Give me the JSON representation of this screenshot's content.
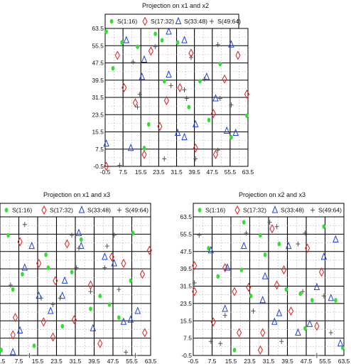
{
  "chart_data": [
    {
      "type": "scatter",
      "title": "Projection on x1 and x2",
      "xticks": [
        "-0.5",
        "7.5",
        "15.5",
        "23.5",
        "31.5",
        "39.5",
        "47.5",
        "55.5",
        "63.5"
      ],
      "yticks": [
        "-0.5",
        "7.5",
        "15.5",
        "23.5",
        "31.5",
        "39.5",
        "47.5",
        "55.5",
        "63.5"
      ],
      "xlim": [
        -0.5,
        63.5
      ],
      "ylim": [
        -0.5,
        63.5
      ],
      "grid": true,
      "legend_position": "top",
      "series": [
        {
          "name": "S(1:16)",
          "marker": "ellipse",
          "color": "#33dd33",
          "points": [
            [
              0,
              62
            ],
            [
              3,
              45
            ],
            [
              7,
              57
            ],
            [
              14,
              55
            ],
            [
              22,
              61
            ],
            [
              19,
              19
            ],
            [
              17,
              8
            ],
            [
              25,
              58
            ],
            [
              32,
              57
            ],
            [
              26,
              39
            ],
            [
              37,
              27
            ],
            [
              42,
              39
            ],
            [
              46,
              21
            ],
            [
              51,
              47
            ],
            [
              56,
              13
            ],
            [
              63,
              23
            ]
          ]
        },
        {
          "name": "S(17:32)",
          "marker": "diamond",
          "color": "#dd2222",
          "points": [
            [
              5,
              51
            ],
            [
              8,
              36
            ],
            [
              13,
              29
            ],
            [
              20,
              53
            ],
            [
              17,
              5
            ],
            [
              24,
              18
            ],
            [
              27,
              30
            ],
            [
              33,
              36
            ],
            [
              38,
              52
            ],
            [
              40,
              8
            ],
            [
              48,
              24
            ],
            [
              49,
              5
            ],
            [
              53,
              40
            ],
            [
              59,
              51
            ],
            [
              63,
              33
            ],
            [
              0,
              -0.5
            ]
          ]
        },
        {
          "name": "S(33:48)",
          "marker": "triangle",
          "color": "#2244dd",
          "points": [
            [
              9,
              58
            ],
            [
              11,
              8
            ],
            [
              16,
              41
            ],
            [
              17,
              49
            ],
            [
              28,
              42
            ],
            [
              28,
              62
            ],
            [
              32,
              15
            ],
            [
              35,
              13
            ],
            [
              35,
              58
            ],
            [
              40,
              19
            ],
            [
              45,
              41
            ],
            [
              49,
              31
            ],
            [
              54,
              16
            ],
            [
              56,
              56
            ],
            [
              58,
              15
            ],
            [
              0,
              10
            ]
          ]
        },
        {
          "name": "S(49:64)",
          "marker": "plus",
          "color": "#555555",
          "points": [
            [
              6,
              0
            ],
            [
              12,
              48
            ],
            [
              14,
              27
            ],
            [
              15,
              33
            ],
            [
              22,
              55
            ],
            [
              29,
              37
            ],
            [
              26,
              3
            ],
            [
              35,
              35
            ],
            [
              36,
              31
            ],
            [
              38,
              50
            ],
            [
              40,
              3
            ],
            [
              44,
              40
            ],
            [
              50,
              56
            ],
            [
              51,
              31
            ],
            [
              56,
              28
            ],
            [
              50,
              7
            ]
          ]
        }
      ]
    },
    {
      "type": "scatter",
      "title": "Projection on x1 and x3",
      "xticks": [
        "-0.5",
        "7.5",
        "15.5",
        "23.5",
        "31.5",
        "39.5",
        "47.5",
        "55.5",
        "63.5"
      ],
      "yticks": [
        "-0.5",
        "7.5",
        "15.5",
        "23.5",
        "31.5",
        "39.5",
        "47.5",
        "55.5",
        "63.5"
      ],
      "xlim": [
        -0.5,
        63.5
      ],
      "ylim": [
        -0.5,
        63.5
      ],
      "grid": true,
      "legend_position": "top",
      "series": [
        {
          "name": "S(1:16)",
          "marker": "ellipse",
          "color": "#33dd33",
          "points": [
            [
              0,
              2
            ],
            [
              3,
              55
            ],
            [
              5,
              30
            ],
            [
              9,
              37
            ],
            [
              14,
              4
            ],
            [
              19,
              46
            ],
            [
              20,
              40
            ],
            [
              26,
              13
            ],
            [
              30,
              38
            ],
            [
              34,
              53
            ],
            [
              38,
              21
            ],
            [
              42,
              27
            ],
            [
              46,
              23
            ],
            [
              50,
              17
            ],
            [
              55,
              34
            ],
            [
              56,
              56
            ]
          ]
        },
        {
          "name": "S(17:32)",
          "marker": "diamond",
          "color": "#dd2222",
          "points": [
            [
              5,
              9
            ],
            [
              6,
              17
            ],
            [
              8,
              52
            ],
            [
              16,
              42
            ],
            [
              18,
              15
            ],
            [
              22,
              8
            ],
            [
              23,
              34
            ],
            [
              28,
              51
            ],
            [
              31,
              16
            ],
            [
              38,
              32
            ],
            [
              42,
              5
            ],
            [
              47,
              45
            ],
            [
              52,
              42
            ],
            [
              60,
              37
            ],
            [
              61,
              10
            ],
            [
              63,
              48
            ]
          ]
        },
        {
          "name": "S(33:48)",
          "marker": "triangle",
          "color": "#2244dd",
          "points": [
            [
              8,
              11
            ],
            [
              10,
              40
            ],
            [
              13,
              50
            ],
            [
              16,
              27
            ],
            [
              21,
              20
            ],
            [
              26,
              27
            ],
            [
              27,
              34
            ],
            [
              33,
              56
            ],
            [
              34,
              50
            ],
            [
              39,
              12
            ],
            [
              44,
              45
            ],
            [
              48,
              42
            ],
            [
              52,
              15
            ],
            [
              55,
              16
            ],
            [
              58,
              20
            ],
            [
              5,
              1
            ]
          ]
        },
        {
          "name": "S(49:64)",
          "marker": "plus",
          "color": "#555555",
          "points": [
            [
              4,
              32
            ],
            [
              10,
              60
            ],
            [
              12,
              -0.5
            ],
            [
              17,
              26
            ],
            [
              22,
              23
            ],
            [
              25,
              26
            ],
            [
              30,
              55
            ],
            [
              32,
              40
            ],
            [
              33,
              49
            ],
            [
              38,
              29
            ],
            [
              44,
              40
            ],
            [
              45,
              50
            ],
            [
              48,
              55
            ],
            [
              50,
              30
            ],
            [
              53,
              1
            ],
            [
              57,
              -0.5
            ]
          ]
        }
      ]
    },
    {
      "type": "scatter",
      "title": "Projection on x2 and x3",
      "xticks": [
        "-0.5",
        "7.5",
        "15.5",
        "23.5",
        "31.5",
        "39.5",
        "47.5",
        "55.5",
        "63.5"
      ],
      "yticks": [
        "-0.5",
        "7.5",
        "15.5",
        "23.5",
        "31.5",
        "39.5",
        "47.5",
        "55.5",
        "63.5"
      ],
      "xlim": [
        -0.5,
        63.5
      ],
      "ylim": [
        -0.5,
        63.5
      ],
      "grid": true,
      "legend_position": "top",
      "series": [
        {
          "name": "S(1:16)",
          "marker": "ellipse",
          "color": "#33dd33",
          "points": [
            [
              6,
              49
            ],
            [
              10,
              36
            ],
            [
              17,
              2
            ],
            [
              20,
              39
            ],
            [
              21,
              61
            ],
            [
              24,
              27
            ],
            [
              28,
              55
            ],
            [
              30,
              46
            ],
            [
              36,
              51
            ],
            [
              39,
              30
            ],
            [
              45,
              28
            ],
            [
              47,
              12
            ],
            [
              50,
              25
            ],
            [
              55,
              59
            ],
            [
              60,
              25
            ],
            [
              63,
              3
            ]
          ]
        },
        {
          "name": "S(17:32)",
          "marker": "diamond",
          "color": "#dd2222",
          "points": [
            [
              0,
              29
            ],
            [
              0,
              41
            ],
            [
              8,
              15
            ],
            [
              13,
              40
            ],
            [
              17,
              29
            ],
            [
              19,
              10
            ],
            [
              23,
              31
            ],
            [
              28,
              2
            ],
            [
              29,
              10
            ],
            [
              33,
              58
            ],
            [
              35,
              32
            ],
            [
              38,
              39
            ],
            [
              41,
              20
            ],
            [
              48,
              49
            ],
            [
              52,
              13
            ],
            [
              54,
              38
            ]
          ]
        },
        {
          "name": "S(33:48)",
          "marker": "triangle",
          "color": "#2244dd",
          "points": [
            [
              7,
              48
            ],
            [
              13,
              21
            ],
            [
              14,
              40
            ],
            [
              21,
              50
            ],
            [
              29,
              25
            ],
            [
              30,
              36
            ],
            [
              34,
              15
            ],
            [
              36,
              19
            ],
            [
              40,
              50
            ],
            [
              44,
              10
            ],
            [
              49,
              14
            ],
            [
              52,
              31
            ],
            [
              55,
              45
            ],
            [
              58,
              26
            ],
            [
              60,
              53
            ],
            [
              62,
              5
            ]
          ]
        },
        {
          "name": "S(49:64)",
          "marker": "plus",
          "color": "#555555",
          "points": [
            [
              0,
              33
            ],
            [
              2,
              55
            ],
            [
              7,
              6
            ],
            [
              11,
              5
            ],
            [
              13,
              18
            ],
            [
              22,
              56
            ],
            [
              25,
              20
            ],
            [
              32,
              61
            ],
            [
              35,
              59
            ],
            [
              37,
              6
            ],
            [
              44,
              51
            ],
            [
              46,
              29
            ],
            [
              47,
              56
            ],
            [
              52,
              -0.5
            ],
            [
              55,
              27
            ],
            [
              58,
              10
            ]
          ]
        }
      ]
    }
  ]
}
